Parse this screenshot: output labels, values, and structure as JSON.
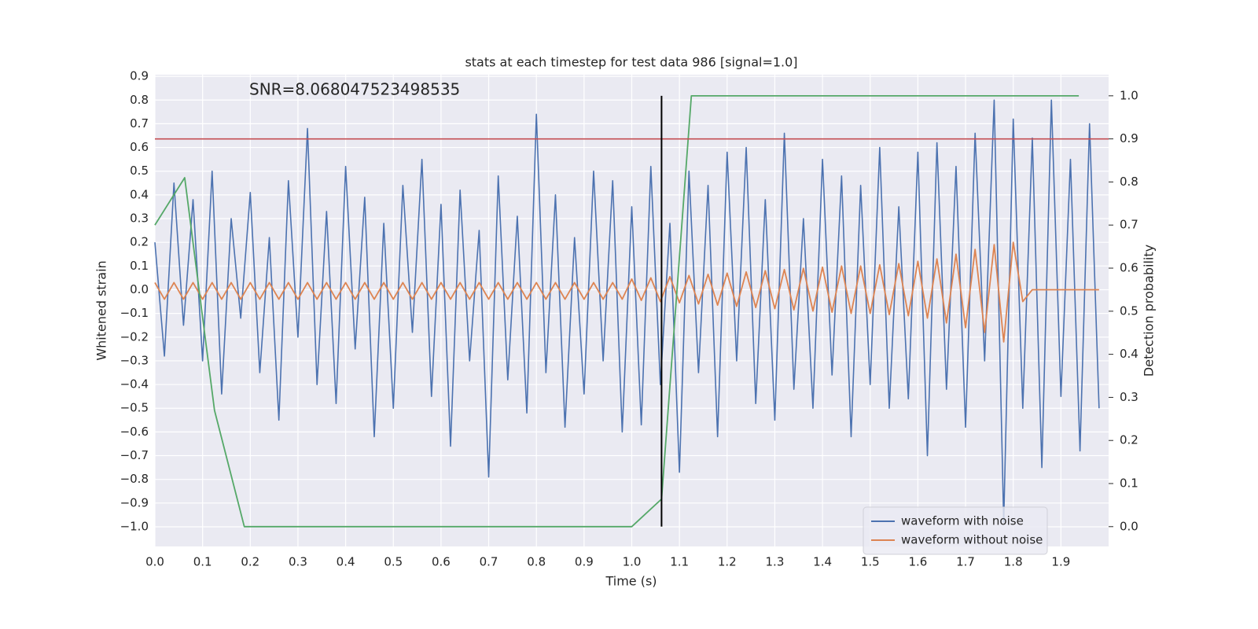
{
  "chart_data": {
    "type": "line",
    "title": "stats at each timestep for test data 986 [signal=1.0]",
    "xlabel": "Time (s)",
    "ylabel": "Whitened strain",
    "y2label": "Detection probability",
    "annotation": "SNR=8.068047523498535",
    "grid": true,
    "legend": "lower right",
    "xlim": [
      0,
      2.0
    ],
    "ylim": [
      -1.083,
      0.907
    ],
    "y2lim": [
      -0.046,
      1.049
    ],
    "xticks": [
      {
        "value": 0,
        "label": "0.0"
      },
      {
        "value": 0.1,
        "label": "0.1"
      },
      {
        "value": 0.2,
        "label": "0.2"
      },
      {
        "value": 0.3,
        "label": "0.3"
      },
      {
        "value": 0.4,
        "label": "0.4"
      },
      {
        "value": 0.5,
        "label": "0.5"
      },
      {
        "value": 0.6,
        "label": "0.6"
      },
      {
        "value": 0.7,
        "label": "0.7"
      },
      {
        "value": 0.8,
        "label": "0.8"
      },
      {
        "value": 0.9,
        "label": "0.9"
      },
      {
        "value": 1,
        "label": "1.0"
      },
      {
        "value": 1.1,
        "label": "1.1"
      },
      {
        "value": 1.2,
        "label": "1.2"
      },
      {
        "value": 1.3,
        "label": "1.3"
      },
      {
        "value": 1.4,
        "label": "1.4"
      },
      {
        "value": 1.5,
        "label": "1.5"
      },
      {
        "value": 1.6,
        "label": "1.6"
      },
      {
        "value": 1.7,
        "label": "1.7"
      },
      {
        "value": 1.8,
        "label": "1.8"
      },
      {
        "value": 1.9,
        "label": "1.9"
      }
    ],
    "yticks": [
      {
        "value": -1,
        "label": "−1.0"
      },
      {
        "value": -0.9,
        "label": "−0.9"
      },
      {
        "value": -0.8,
        "label": "−0.8"
      },
      {
        "value": -0.7,
        "label": "−0.7"
      },
      {
        "value": -0.6,
        "label": "−0.6"
      },
      {
        "value": -0.5,
        "label": "−0.5"
      },
      {
        "value": -0.4,
        "label": "−0.4"
      },
      {
        "value": -0.3,
        "label": "−0.3"
      },
      {
        "value": -0.2,
        "label": "−0.2"
      },
      {
        "value": -0.1,
        "label": "−0.1"
      },
      {
        "value": 0,
        "label": "0.0"
      },
      {
        "value": 0.1,
        "label": "0.1"
      },
      {
        "value": 0.2,
        "label": "0.2"
      },
      {
        "value": 0.3,
        "label": "0.3"
      },
      {
        "value": 0.4,
        "label": "0.4"
      },
      {
        "value": 0.5,
        "label": "0.5"
      },
      {
        "value": 0.6,
        "label": "0.6"
      },
      {
        "value": 0.7,
        "label": "0.7"
      },
      {
        "value": 0.8,
        "label": "0.8"
      },
      {
        "value": 0.9,
        "label": "0.9"
      }
    ],
    "y2ticks": [
      {
        "value": 0,
        "label": "0.0"
      },
      {
        "value": 0.1,
        "label": "0.1"
      },
      {
        "value": 0.2,
        "label": "0.2"
      },
      {
        "value": 0.3,
        "label": "0.3"
      },
      {
        "value": 0.4,
        "label": "0.4"
      },
      {
        "value": 0.5,
        "label": "0.5"
      },
      {
        "value": 0.6,
        "label": "0.6"
      },
      {
        "value": 0.7,
        "label": "0.7"
      },
      {
        "value": 0.8,
        "label": "0.8"
      },
      {
        "value": 0.9,
        "label": "0.9"
      },
      {
        "value": 1,
        "label": "1.0"
      }
    ],
    "x": [
      0,
      0.02,
      0.04,
      0.06,
      0.08,
      0.1,
      0.12,
      0.14,
      0.16,
      0.18,
      0.2,
      0.22,
      0.24,
      0.26,
      0.28,
      0.3,
      0.32,
      0.34,
      0.36,
      0.38,
      0.4,
      0.42,
      0.44,
      0.46,
      0.48,
      0.5,
      0.52,
      0.54,
      0.56,
      0.58,
      0.6,
      0.62,
      0.64,
      0.66,
      0.68,
      0.7,
      0.72,
      0.74,
      0.76,
      0.78,
      0.8,
      0.82,
      0.84,
      0.86,
      0.88,
      0.9,
      0.92,
      0.94,
      0.96,
      0.98,
      1,
      1.02,
      1.04,
      1.06,
      1.08,
      1.1,
      1.12,
      1.14,
      1.16,
      1.18,
      1.2,
      1.22,
      1.24,
      1.26,
      1.28,
      1.3,
      1.32,
      1.34,
      1.36,
      1.38,
      1.4,
      1.42,
      1.44,
      1.46,
      1.48,
      1.5,
      1.52,
      1.54,
      1.56,
      1.58,
      1.6,
      1.62,
      1.64,
      1.66,
      1.68,
      1.7,
      1.72,
      1.74,
      1.76,
      1.78,
      1.8,
      1.82,
      1.84,
      1.86,
      1.88,
      1.9,
      1.92,
      1.94,
      1.96,
      1.98
    ],
    "series": [
      {
        "name": "waveform with noise",
        "color": "#4c72b0",
        "values": [
          0.2,
          -0.28,
          0.45,
          -0.15,
          0.38,
          -0.3,
          0.5,
          -0.44,
          0.3,
          -0.12,
          0.41,
          -0.35,
          0.22,
          -0.55,
          0.46,
          -0.2,
          0.68,
          -0.4,
          0.33,
          -0.48,
          0.52,
          -0.25,
          0.39,
          -0.62,
          0.28,
          -0.5,
          0.44,
          -0.18,
          0.55,
          -0.45,
          0.36,
          -0.66,
          0.42,
          -0.3,
          0.25,
          -0.79,
          0.48,
          -0.38,
          0.31,
          -0.52,
          0.74,
          -0.35,
          0.4,
          -0.58,
          0.22,
          -0.44,
          0.5,
          -0.3,
          0.46,
          -0.6,
          0.35,
          -0.57,
          0.52,
          -0.4,
          0.28,
          -0.77,
          0.5,
          -0.35,
          0.44,
          -0.62,
          0.58,
          -0.3,
          0.6,
          -0.48,
          0.38,
          -0.55,
          0.66,
          -0.42,
          0.3,
          -0.5,
          0.55,
          -0.36,
          0.48,
          -0.62,
          0.44,
          -0.4,
          0.6,
          -0.5,
          0.35,
          -0.46,
          0.58,
          -0.7,
          0.62,
          -0.42,
          0.52,
          -0.58,
          0.66,
          -0.3,
          0.8,
          -0.98,
          0.72,
          -0.5,
          0.64,
          -0.75,
          0.8,
          -0.45,
          0.55,
          -0.68,
          0.7,
          -0.5
        ]
      },
      {
        "name": "waveform without noise",
        "color": "#dd8452",
        "values": [
          0.03,
          -0.04,
          0.03,
          -0.04,
          0.03,
          -0.04,
          0.03,
          -0.04,
          0.03,
          -0.04,
          0.03,
          -0.04,
          0.03,
          -0.04,
          0.03,
          -0.04,
          0.03,
          -0.04,
          0.03,
          -0.04,
          0.03,
          -0.04,
          0.03,
          -0.04,
          0.03,
          -0.04,
          0.03,
          -0.04,
          0.03,
          -0.04,
          0.03,
          -0.04,
          0.03,
          -0.04,
          0.03,
          -0.04,
          0.03,
          -0.04,
          0.03,
          -0.04,
          0.03,
          -0.04,
          0.03,
          -0.04,
          0.03,
          -0.04,
          0.03,
          -0.04,
          0.03,
          -0.04,
          0.045,
          -0.045,
          0.05,
          -0.05,
          0.055,
          -0.055,
          0.06,
          -0.06,
          0.065,
          -0.065,
          0.07,
          -0.07,
          0.075,
          -0.075,
          0.08,
          -0.08,
          0.085,
          -0.085,
          0.09,
          -0.09,
          0.095,
          -0.095,
          0.1,
          -0.1,
          0.1,
          -0.1,
          0.105,
          -0.105,
          0.11,
          -0.11,
          0.12,
          -0.12,
          0.13,
          -0.14,
          0.15,
          -0.16,
          0.17,
          -0.18,
          0.19,
          -0.22,
          0.2,
          -0.05,
          0,
          0,
          0,
          0,
          0,
          0,
          0,
          0
        ]
      },
      {
        "color": "#55a868",
        "axis": "y2",
        "x": [
          0,
          0.0625,
          0.125,
          0.1875,
          0.25,
          1.0,
          1.0625,
          1.125,
          1.1875,
          1.9375
        ],
        "values": [
          0.7,
          0.81,
          0.27,
          0.0,
          0.0,
          0.0,
          0.064,
          1.0,
          1.0,
          1.0
        ]
      }
    ],
    "hline": {
      "value": 0.9,
      "axis": "y2",
      "color": "#c44e52"
    },
    "vline": {
      "x": 1.0625,
      "ymin": 0,
      "ymax": 1,
      "axis": "y2",
      "color": "#000000"
    }
  }
}
